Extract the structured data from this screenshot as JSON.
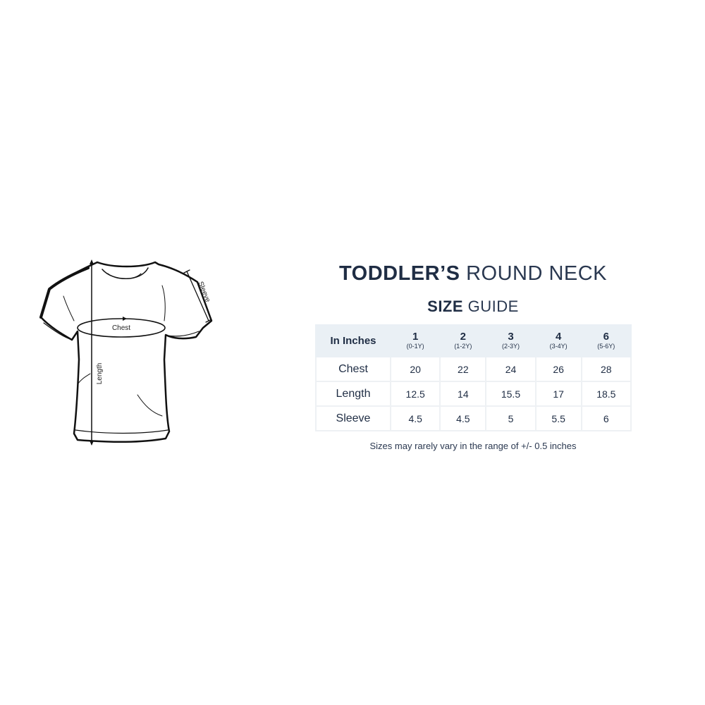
{
  "title": {
    "bold": "TODDLER’S",
    "light": "ROUND NECK"
  },
  "subtitle": {
    "bold": "SIZE",
    "light": "GUIDE"
  },
  "diagram": {
    "chest_label": "Chest",
    "length_label": "Length",
    "sleeve_label": "Sleeve"
  },
  "table": {
    "corner": "In Inches",
    "columns": [
      {
        "size": "1",
        "age": "(0-1Y)"
      },
      {
        "size": "2",
        "age": "(1-2Y)"
      },
      {
        "size": "3",
        "age": "(2-3Y)"
      },
      {
        "size": "4",
        "age": "(3-4Y)"
      },
      {
        "size": "6",
        "age": "(5-6Y)"
      }
    ],
    "rows": [
      {
        "label": "Chest",
        "values": [
          "20",
          "22",
          "24",
          "26",
          "28"
        ]
      },
      {
        "label": "Length",
        "values": [
          "12.5",
          "14",
          "15.5",
          "17",
          "18.5"
        ]
      },
      {
        "label": "Sleeve",
        "values": [
          "4.5",
          "4.5",
          "5",
          "5.5",
          "6"
        ]
      }
    ]
  },
  "note": "Sizes may rarely vary in the range of +/- 0.5 inches",
  "colors": {
    "text": "#1f2d44",
    "header_bg": "#eaf0f5",
    "border": "#eef1f4"
  }
}
